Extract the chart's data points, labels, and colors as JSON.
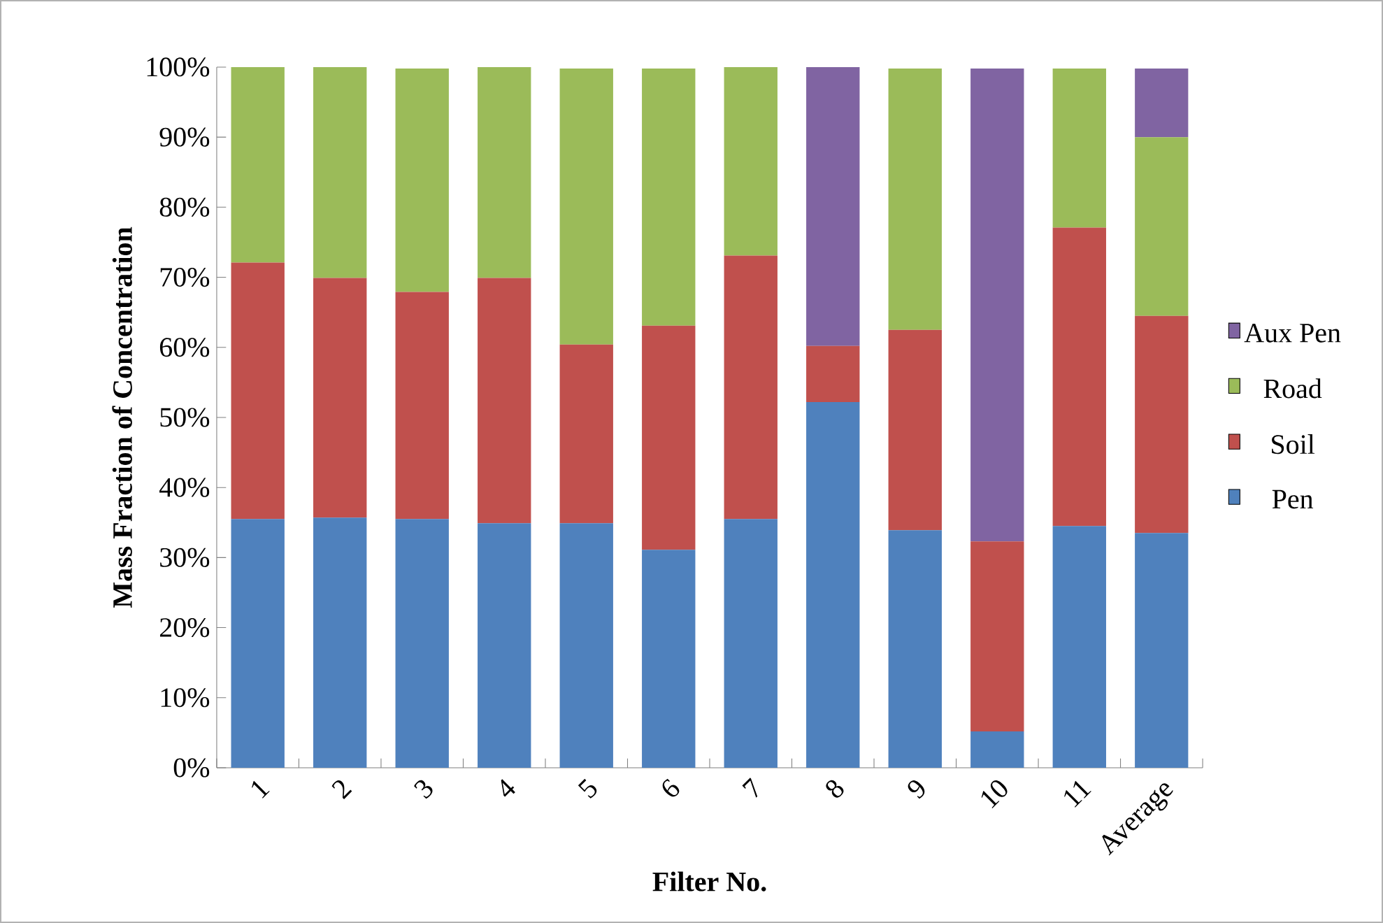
{
  "chart_data": {
    "type": "bar",
    "stacked": true,
    "xlabel": "Filter No.",
    "ylabel": "Mass Fraction of Concentration",
    "categories": [
      "1",
      "2",
      "3",
      "4",
      "5",
      "6",
      "7",
      "8",
      "9",
      "10",
      "11",
      "Average"
    ],
    "series": [
      {
        "name": "Pen",
        "color": "#4f81bd",
        "values": [
          35.5,
          35.7,
          35.5,
          34.9,
          34.9,
          31.1,
          35.5,
          52.2,
          33.9,
          5.2,
          34.5,
          33.5
        ]
      },
      {
        "name": "Soil",
        "color": "#c0504d",
        "values": [
          36.6,
          34.2,
          32.4,
          35.0,
          25.5,
          32.0,
          37.6,
          8.0,
          28.6,
          27.1,
          42.6,
          31.0
        ]
      },
      {
        "name": "Road",
        "color": "#9bbb59",
        "values": [
          27.9,
          30.1,
          31.9,
          30.1,
          39.4,
          36.7,
          26.9,
          0,
          37.3,
          0,
          22.7,
          25.5
        ]
      },
      {
        "name": "Aux Pen",
        "color": "#8064a2",
        "values": [
          0,
          0,
          0,
          0,
          0,
          0,
          0,
          39.8,
          0,
          67.5,
          0,
          9.8
        ]
      }
    ],
    "ylim": [
      0,
      100
    ],
    "yticks": [
      {
        "value": 0,
        "label": "0%"
      },
      {
        "value": 10,
        "label": "10%"
      },
      {
        "value": 20,
        "label": "20%"
      },
      {
        "value": 30,
        "label": "30%"
      },
      {
        "value": 40,
        "label": "40%"
      },
      {
        "value": 50,
        "label": "50%"
      },
      {
        "value": 60,
        "label": "60%"
      },
      {
        "value": 70,
        "label": "70%"
      },
      {
        "value": 80,
        "label": "80%"
      },
      {
        "value": 90,
        "label": "90%"
      },
      {
        "value": 100,
        "label": "100%"
      }
    ],
    "legend": "right"
  }
}
